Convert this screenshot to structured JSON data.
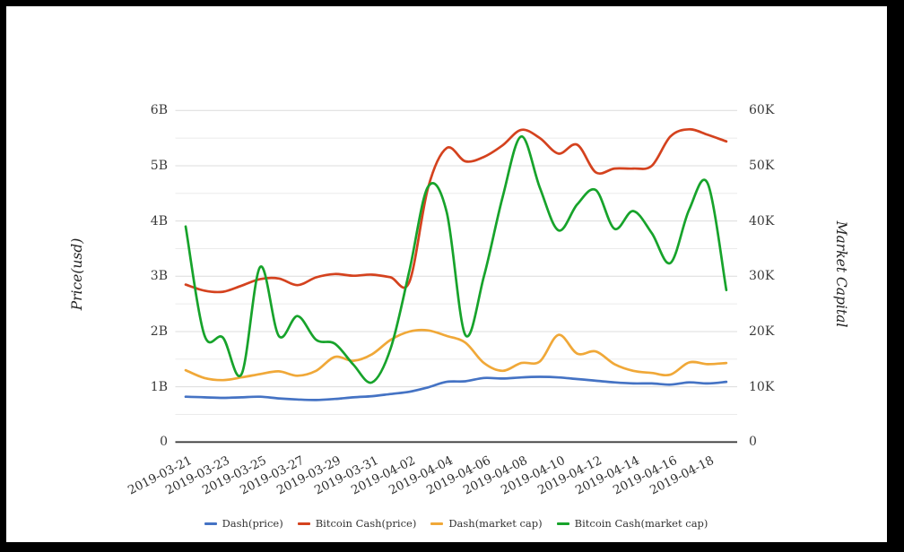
{
  "chart_data": {
    "type": "line",
    "title": "",
    "smoothing": "spline",
    "grid": "horizontal gridlines every 0.5B / 5K, no vertical gridlines",
    "legend_position": "bottom-center",
    "background_color": "#ffffff",
    "frame_color": "#000000",
    "x": [
      "2019-03-21",
      "2019-03-22",
      "2019-03-23",
      "2019-03-24",
      "2019-03-25",
      "2019-03-26",
      "2019-03-27",
      "2019-03-28",
      "2019-03-29",
      "2019-03-30",
      "2019-03-31",
      "2019-04-01",
      "2019-04-02",
      "2019-04-03",
      "2019-04-04",
      "2019-04-05",
      "2019-04-06",
      "2019-04-07",
      "2019-04-08",
      "2019-04-09",
      "2019-04-10",
      "2019-04-11",
      "2019-04-12",
      "2019-04-13",
      "2019-04-14",
      "2019-04-15",
      "2019-04-16",
      "2019-04-17",
      "2019-04-18",
      "2019-04-19"
    ],
    "x_tick_labels": [
      "2019-03-21",
      "2019-03-23",
      "2019-03-25",
      "2019-03-27",
      "2019-03-29",
      "2019-03-31",
      "2019-04-02",
      "2019-04-04",
      "2019-04-06",
      "2019-04-08",
      "2019-04-10",
      "2019-04-12",
      "2019-04-14",
      "2019-04-16",
      "2019-04-18"
    ],
    "left_axis": {
      "label": "Price(usd)",
      "ticks": [
        "0",
        "1B",
        "2B",
        "3B",
        "4B",
        "5B",
        "6B"
      ],
      "min": 0,
      "max": 6,
      "unit": "B"
    },
    "right_axis": {
      "label": "Market Capital",
      "ticks": [
        "0",
        "10K",
        "20K",
        "30K",
        "40K",
        "50K",
        "60K"
      ],
      "min": 0,
      "max": 60,
      "unit": "K"
    },
    "series": [
      {
        "name": "Dash(price)",
        "axis": "left",
        "color": "#4573c4",
        "values": [
          0.82,
          0.81,
          0.8,
          0.81,
          0.82,
          0.79,
          0.77,
          0.76,
          0.78,
          0.81,
          0.83,
          0.87,
          0.91,
          0.99,
          1.09,
          1.1,
          1.16,
          1.15,
          1.17,
          1.18,
          1.17,
          1.14,
          1.11,
          1.08,
          1.06,
          1.06,
          1.04,
          1.08,
          1.06,
          1.09
        ]
      },
      {
        "name": "Bitcoin Cash(price)",
        "axis": "left",
        "color": "#d4421e",
        "values": [
          2.85,
          2.74,
          2.72,
          2.83,
          2.95,
          2.96,
          2.84,
          2.98,
          3.04,
          3.01,
          3.03,
          2.98,
          2.9,
          4.6,
          5.32,
          5.08,
          5.16,
          5.37,
          5.65,
          5.5,
          5.22,
          5.38,
          4.88,
          4.95,
          4.95,
          5.0,
          5.53,
          5.66,
          5.56,
          5.44
        ]
      },
      {
        "name": "Dash(market cap)",
        "axis": "right",
        "color": "#f0a838",
        "values": [
          13.0,
          11.6,
          11.2,
          11.7,
          12.3,
          12.8,
          12.0,
          12.9,
          15.4,
          14.7,
          15.9,
          18.5,
          20.0,
          20.2,
          19.2,
          18.0,
          14.3,
          12.9,
          14.3,
          14.6,
          19.4,
          16.0,
          16.4,
          14.1,
          12.9,
          12.5,
          12.2,
          14.4,
          14.1,
          14.3
        ]
      },
      {
        "name": "Bitcoin Cash(market cap)",
        "axis": "right",
        "color": "#17a32b",
        "values": [
          39.0,
          19.4,
          18.9,
          12.3,
          31.7,
          19.2,
          22.8,
          18.5,
          17.8,
          14.0,
          10.8,
          17.0,
          31.0,
          46.2,
          41.6,
          19.4,
          30.0,
          44.3,
          55.3,
          46.0,
          38.3,
          43.0,
          45.6,
          38.6,
          41.8,
          37.8,
          32.4,
          42.0,
          46.8,
          27.5
        ]
      }
    ]
  }
}
